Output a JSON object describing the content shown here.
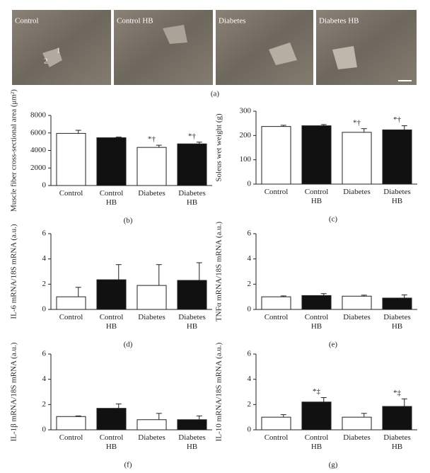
{
  "figure": {
    "panels": [
      "Control",
      "Control HB",
      "Diabetes",
      "Diabetes HB"
    ],
    "fiber_labels": [
      "1",
      "2"
    ],
    "panel_label": "(a)"
  },
  "chart_data": [
    {
      "type": "bar",
      "panel_label": "(b)",
      "ylabel": "Muscle fiber cross-sectional area (μm²)",
      "categories": [
        "Control",
        "Control HB",
        "Diabetes",
        "Diabetes HB"
      ],
      "values": [
        5950,
        5450,
        4350,
        4750
      ],
      "errors": [
        350,
        80,
        250,
        200
      ],
      "colors": [
        "#ffffff",
        "#111111",
        "#ffffff",
        "#111111"
      ],
      "markers": [
        null,
        null,
        "*†",
        "*†"
      ],
      "ylim": [
        0,
        8000
      ],
      "yticks": [
        0,
        2000,
        4000,
        6000,
        8000
      ]
    },
    {
      "type": "bar",
      "panel_label": "(c)",
      "ylabel": "Soleus wet weight (g)",
      "categories": [
        "Control",
        "Control HB",
        "Diabetes",
        "Diabetes HB"
      ],
      "values": [
        237,
        240,
        213,
        223
      ],
      "errors": [
        5,
        5,
        15,
        17
      ],
      "colors": [
        "#ffffff",
        "#111111",
        "#ffffff",
        "#111111"
      ],
      "markers": [
        null,
        null,
        "*†",
        "*†"
      ],
      "ylim": [
        0,
        300
      ],
      "yticks": [
        0,
        100,
        200,
        300
      ]
    },
    {
      "type": "bar",
      "panel_label": "(d)",
      "ylabel": "IL-6 mRNA/18S mRNA (a.u.)",
      "categories": [
        "Control",
        "Control HB",
        "Diabetes",
        "Diabetes HB"
      ],
      "values": [
        1.0,
        2.35,
        1.9,
        2.3
      ],
      "errors": [
        0.75,
        1.2,
        1.65,
        1.4
      ],
      "colors": [
        "#ffffff",
        "#111111",
        "#ffffff",
        "#111111"
      ],
      "markers": [
        null,
        null,
        null,
        null
      ],
      "ylim": [
        0,
        6
      ],
      "yticks": [
        0,
        2,
        4,
        6
      ]
    },
    {
      "type": "bar",
      "panel_label": "(e)",
      "ylabel": "TNFα mRNA/18S mRNA (a.u.)",
      "categories": [
        "Control",
        "Control HB",
        "Diabetes",
        "Diabetes HB"
      ],
      "values": [
        1.0,
        1.1,
        1.05,
        0.9
      ],
      "errors": [
        0.07,
        0.15,
        0.08,
        0.25
      ],
      "colors": [
        "#ffffff",
        "#111111",
        "#ffffff",
        "#111111"
      ],
      "markers": [
        null,
        null,
        null,
        null
      ],
      "ylim": [
        0,
        6
      ],
      "yticks": [
        0,
        2,
        4,
        6
      ]
    },
    {
      "type": "bar",
      "panel_label": "(f)",
      "ylabel": "IL-1β mRNA/18S mRNA (a.u.)",
      "categories": [
        "Control",
        "Control HB",
        "Diabetes",
        "Diabetes HB"
      ],
      "values": [
        1.05,
        1.7,
        0.8,
        0.8
      ],
      "errors": [
        0.05,
        0.35,
        0.5,
        0.3
      ],
      "colors": [
        "#ffffff",
        "#111111",
        "#ffffff",
        "#111111"
      ],
      "markers": [
        null,
        null,
        null,
        null
      ],
      "ylim": [
        0,
        6
      ],
      "yticks": [
        0,
        2,
        4,
        6
      ]
    },
    {
      "type": "bar",
      "panel_label": "(g)",
      "ylabel": "IL-10 mRNA/18S mRNA (a.u.)",
      "categories": [
        "Control",
        "Control HB",
        "Diabetes",
        "Diabetes HB"
      ],
      "values": [
        1.0,
        2.2,
        1.0,
        1.85
      ],
      "errors": [
        0.2,
        0.35,
        0.3,
        0.6
      ],
      "colors": [
        "#ffffff",
        "#111111",
        "#ffffff",
        "#111111"
      ],
      "markers": [
        null,
        "*‡",
        null,
        "*‡"
      ],
      "ylim": [
        0,
        6
      ],
      "yticks": [
        0,
        2,
        4,
        6
      ]
    }
  ]
}
